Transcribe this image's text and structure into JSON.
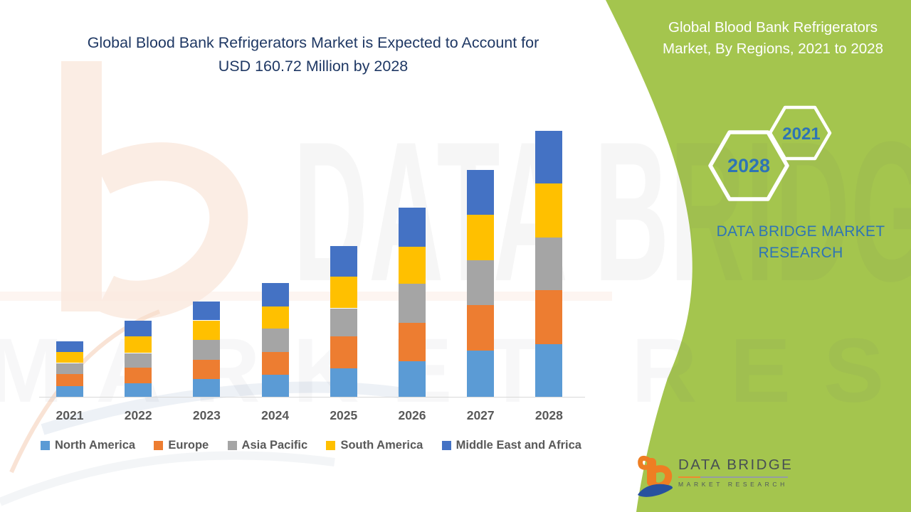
{
  "colors": {
    "accent_green": "#A4C54E",
    "title_blue": "#1F3864",
    "panel_text_white": "#FFFFFF",
    "hex_year_blue": "#2E74B5",
    "axis_line_gray": "#D9D9D9",
    "label_gray": "#595959",
    "logo_orange": "#EE7E23",
    "logo_navy": "#27519E",
    "logo_text_gray": "#474F54"
  },
  "chart_title": {
    "line1": "Global Blood Bank Refrigerators Market is Expected to Account for",
    "line2": "USD 160.72 Million by 2028"
  },
  "side_panel": {
    "heading": "Global Blood Bank Refrigerators Market, By Regions, 2021 to 2028",
    "hexagons": [
      {
        "label": "2028"
      },
      {
        "label": "2021"
      }
    ],
    "brand_line1": "DATA BRIDGE MARKET",
    "brand_line2": "RESEARCH"
  },
  "logo": {
    "name": "DATA BRIDGE",
    "tagline": "MARKET RESEARCH"
  },
  "watermark": {
    "text1": "DATA BRIDGE",
    "text2": "MARKET RESEARCH"
  },
  "chart_data": {
    "type": "bar",
    "stacked": true,
    "title": "Global Blood Bank Refrigerators Market is Expected to Account for USD 160.72 Million by 2028",
    "unit": "USD Million",
    "categories": [
      "2021",
      "2022",
      "2023",
      "2024",
      "2025",
      "2026",
      "2027",
      "2028"
    ],
    "series": [
      {
        "name": "North America",
        "color": "#5B9BD5",
        "values": [
          6.9,
          8.6,
          11.3,
          13.8,
          17.6,
          22.0,
          28.2,
          32.0
        ]
      },
      {
        "name": "Europe",
        "color": "#ED7D31",
        "values": [
          7.2,
          9.6,
          11.4,
          13.6,
          19.4,
          23.1,
          27.6,
          32.7
        ]
      },
      {
        "name": "Asia Pacific",
        "color": "#A5A5A5",
        "values": [
          6.7,
          8.6,
          11.9,
          14.0,
          16.8,
          23.4,
          26.9,
          31.7
        ]
      },
      {
        "name": "South America",
        "color": "#FFC000",
        "values": [
          6.7,
          10.0,
          11.9,
          13.6,
          18.9,
          22.4,
          27.4,
          32.6
        ]
      },
      {
        "name": "Middle East and Africa",
        "color": "#4472C4",
        "values": [
          6.4,
          9.4,
          11.3,
          14.1,
          18.4,
          23.6,
          27.1,
          31.72
        ]
      }
    ],
    "totals": [
      33.9,
      46.2,
      57.8,
      69.1,
      91.1,
      114.5,
      137.2,
      160.72
    ],
    "ylim": [
      0,
      170
    ],
    "y_axis_visible": false,
    "grid": false,
    "legend_position": "bottom"
  }
}
